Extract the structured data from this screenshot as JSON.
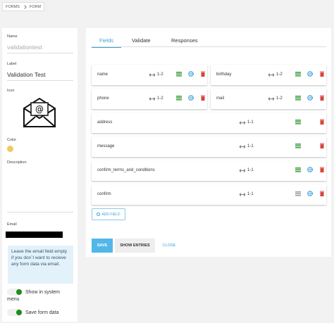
{
  "breadcrumb": [
    "FORMS",
    "FORM"
  ],
  "sidebar": {
    "name": {
      "label": "Name",
      "value": "validationtest"
    },
    "label_field": {
      "label": "Label",
      "value": "Validation Test"
    },
    "icon": {
      "label": "Icon"
    },
    "color": {
      "label": "Color",
      "value": "#f5c85a"
    },
    "description": {
      "label": "Description"
    },
    "email": {
      "label": "Email"
    },
    "email_hint": "Leave the email field empty if you don´t want to recieve any form data via email.",
    "toggles": [
      "Show in system menu",
      "Save form data"
    ]
  },
  "tabs": [
    "Fields",
    "Validate",
    "Responses"
  ],
  "fields": [
    {
      "name": "name",
      "width": "1-2",
      "has_settings": true
    },
    {
      "name": "birthday",
      "width": "1-2",
      "has_settings": true
    },
    {
      "name": "phone",
      "width": "1-2",
      "has_settings": true
    },
    {
      "name": "mail",
      "width": "1-2",
      "has_settings": true
    },
    {
      "name": "address",
      "width": "1-1",
      "has_settings": false
    },
    {
      "name": "message",
      "width": "1-1",
      "has_settings": false
    },
    {
      "name": "confirm_terms_and_conditions",
      "width": "1-1",
      "has_settings": true
    },
    {
      "name": "confirm",
      "width": "1-1",
      "has_settings": true
    }
  ],
  "add_field": "ADD FIELD",
  "buttons": [
    "SAVE",
    "SHOW ENTRIES",
    "CLOSE"
  ]
}
